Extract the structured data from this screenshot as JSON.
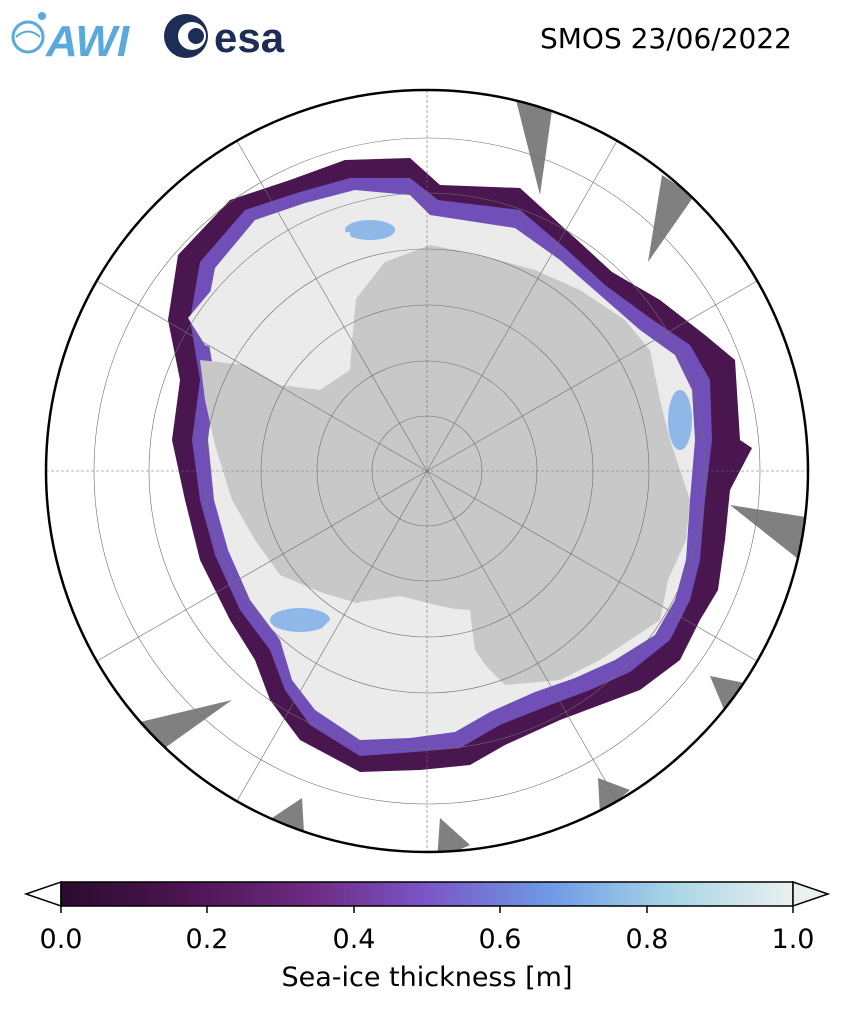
{
  "header": {
    "title": "SMOS 23/06/2022",
    "logos": [
      {
        "name": "awi-logo",
        "text": "AWI",
        "color": "#5aa9dd"
      },
      {
        "name": "esa-logo",
        "text": "esa",
        "color": "#1e2d55"
      }
    ]
  },
  "map": {
    "projection": "south-polar-stereographic",
    "land_color": "#c8c8c8",
    "ice_shelf_color": "#ebebeb",
    "missing_data_color": "#808080",
    "ocean_color": "#ffffff",
    "gridlines": true
  },
  "colorbar": {
    "label": "Sea-ice thickness [m]",
    "ticks": [
      "0.0",
      "0.2",
      "0.4",
      "0.6",
      "0.8",
      "1.0"
    ],
    "range": [
      0.0,
      1.0
    ],
    "extend": "both",
    "colors": [
      "#2b0b2e",
      "#4d1452",
      "#6e2a82",
      "#7a56c8",
      "#6f9be6",
      "#a6d4e6",
      "#eaf0ef"
    ]
  }
}
